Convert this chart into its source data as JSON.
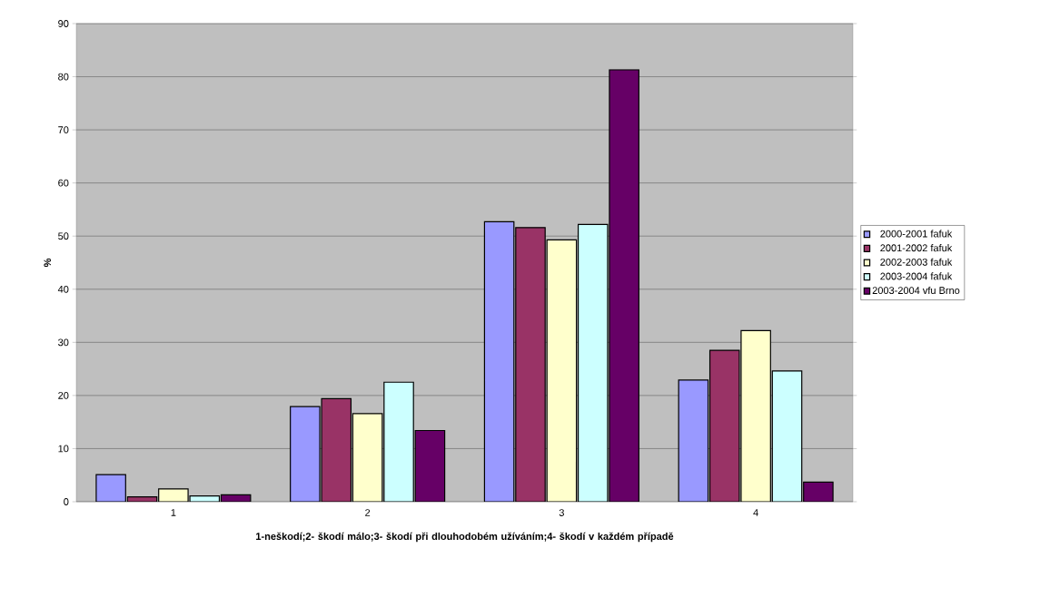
{
  "chart_data": {
    "type": "bar",
    "xlabel": "1-neškodí;2- škodí málo;3- škodí při dlouhodobém užíváním;4- škodí v každém případě",
    "ylabel": "%",
    "categories": [
      "1",
      "2",
      "3",
      "4"
    ],
    "series": [
      {
        "name": "2000-2001 fafuk",
        "color": "#9999ff",
        "values": [
          5.1,
          17.9,
          52.7,
          22.9
        ]
      },
      {
        "name": "2001-2002 fafuk",
        "color": "#993366",
        "values": [
          0.9,
          19.4,
          51.6,
          28.5
        ]
      },
      {
        "name": "2002-2003 fafuk",
        "color": "#ffffcc",
        "values": [
          2.4,
          16.6,
          49.3,
          32.2
        ]
      },
      {
        "name": "2003-2004 fafuk",
        "color": "#ccffff",
        "values": [
          1.1,
          22.5,
          52.2,
          24.6
        ]
      },
      {
        "name": "2003-2004 vfu Brno",
        "color": "#660066",
        "values": [
          1.3,
          13.4,
          81.3,
          3.7
        ]
      }
    ],
    "ylim": [
      0,
      90
    ],
    "yticks": [
      0,
      10,
      20,
      30,
      40,
      50,
      60,
      70,
      80,
      90
    ],
    "grid": "y",
    "legend": "right"
  }
}
